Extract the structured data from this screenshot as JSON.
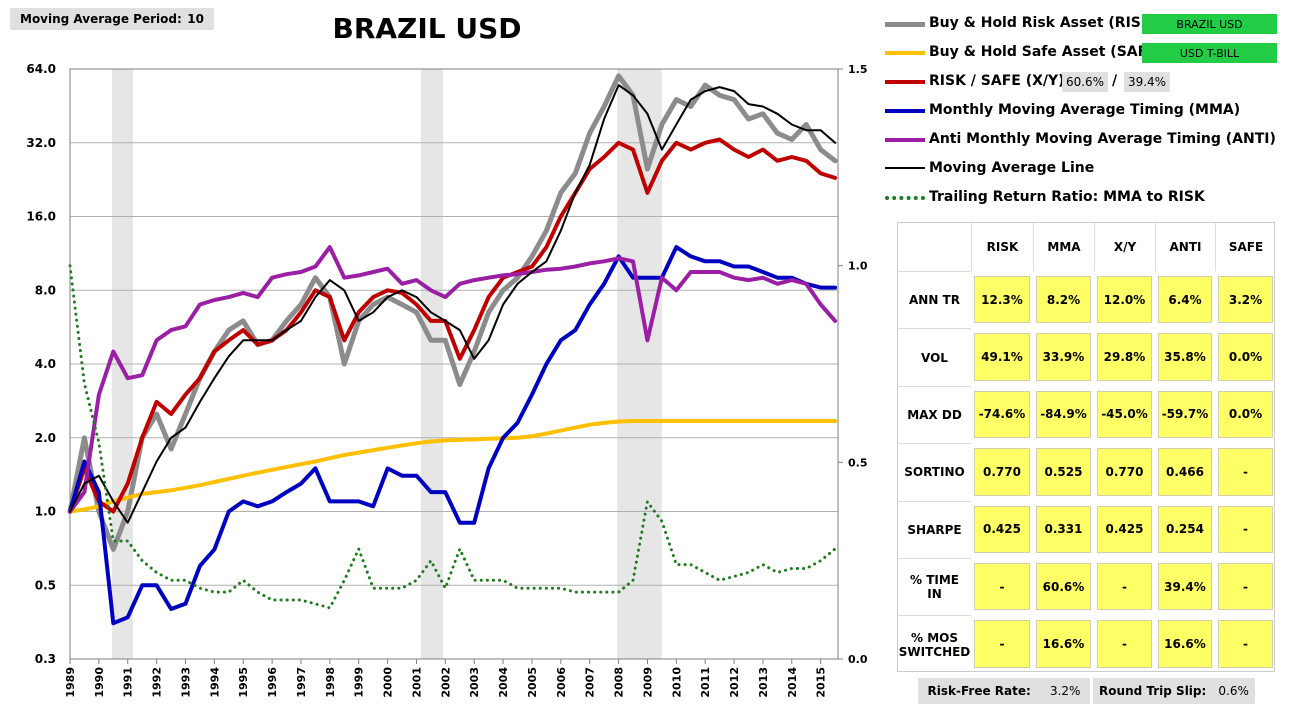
{
  "settings": {
    "ma_period_label": "Moving Average Period:",
    "ma_period": "10"
  },
  "chart_data": {
    "type": "line",
    "title": "BRAZIL USD",
    "ylog": true,
    "xlim": [
      1989,
      2015.6
    ],
    "xticks": [
      1989,
      1990,
      1991,
      1992,
      1993,
      1994,
      1995,
      1996,
      1997,
      1998,
      1999,
      2000,
      2001,
      2002,
      2003,
      2004,
      2005,
      2006,
      2007,
      2008,
      2009,
      2010,
      2011,
      2012,
      2013,
      2014,
      2015
    ],
    "ylim": [
      0.25,
      64
    ],
    "yticks": [
      {
        "value": 0.25,
        "label": "0.3"
      },
      0.5,
      {
        "value": 1,
        "label": "1.0"
      },
      {
        "value": 2,
        "label": "2.0"
      },
      {
        "value": 4,
        "label": "4.0"
      },
      {
        "value": 8,
        "label": "8.0"
      },
      {
        "value": 16,
        "label": "16.0"
      },
      {
        "value": 32,
        "label": "32.0"
      },
      {
        "value": 64,
        "label": "64.0"
      }
    ],
    "y2lim": [
      0,
      1.5
    ],
    "y2ticks": [
      {
        "value": 0,
        "label": "0.0"
      },
      0.5,
      {
        "value": 1,
        "label": "1.0"
      },
      1.5
    ],
    "grid": true,
    "shaded_periods": [
      [
        1990.45,
        1991.18
      ],
      [
        2001.16,
        2001.92
      ],
      [
        2007.95,
        2009.5
      ]
    ],
    "shade_color": "#e6e6e6",
    "x": [
      1989,
      1989.5,
      1990,
      1990.5,
      1991,
      1991.5,
      1992,
      1992.5,
      1993,
      1993.5,
      1994,
      1994.5,
      1995,
      1995.5,
      1996,
      1996.5,
      1997,
      1997.5,
      1998,
      1998.5,
      1999,
      1999.5,
      2000,
      2000.5,
      2001,
      2001.5,
      2002,
      2002.5,
      2003,
      2003.5,
      2004,
      2004.5,
      2005,
      2005.5,
      2006,
      2006.5,
      2007,
      2007.5,
      2008,
      2008.5,
      2009,
      2009.5,
      2010,
      2010.5,
      2011,
      2011.5,
      2012,
      2012.5,
      2013,
      2013.5,
      2014,
      2014.5,
      2015,
      2015.5
    ],
    "series": [
      {
        "name": "Buy & Hold Risk Asset (RISK):",
        "color": "#8c8c8c",
        "values": [
          1.0,
          2.0,
          1.0,
          0.7,
          1.0,
          2.0,
          2.5,
          1.8,
          2.5,
          3.5,
          4.5,
          5.5,
          6.0,
          4.8,
          5.0,
          6.0,
          7.0,
          9.0,
          7.5,
          4.0,
          6.0,
          7.0,
          7.5,
          7.0,
          6.5,
          5.0,
          5.0,
          3.3,
          4.5,
          6.5,
          8.0,
          9.0,
          11,
          14,
          20,
          24,
          35,
          45,
          60,
          50,
          25,
          38,
          48,
          45,
          55,
          50,
          48,
          40,
          42,
          35,
          33,
          38,
          30,
          27
        ]
      },
      {
        "name": "Buy & Hold Safe Asset (SAFE):",
        "color": "#ffc000",
        "values": [
          1.0,
          1.02,
          1.05,
          1.1,
          1.14,
          1.18,
          1.2,
          1.22,
          1.25,
          1.28,
          1.32,
          1.36,
          1.4,
          1.44,
          1.48,
          1.52,
          1.56,
          1.6,
          1.65,
          1.7,
          1.74,
          1.78,
          1.82,
          1.86,
          1.9,
          1.93,
          1.95,
          1.96,
          1.97,
          1.98,
          1.99,
          2.0,
          2.03,
          2.08,
          2.14,
          2.2,
          2.26,
          2.3,
          2.33,
          2.34,
          2.34,
          2.34,
          2.34,
          2.34,
          2.34,
          2.34,
          2.34,
          2.34,
          2.34,
          2.34,
          2.34,
          2.34,
          2.34,
          2.34
        ]
      },
      {
        "name": "RISK / SAFE (X/Y):",
        "color": "#c00000",
        "values": [
          1.0,
          1.5,
          1.1,
          1.0,
          1.3,
          2.0,
          2.8,
          2.5,
          3.0,
          3.5,
          4.5,
          5.0,
          5.5,
          4.8,
          5.0,
          5.5,
          6.5,
          8.0,
          7.5,
          5.0,
          6.5,
          7.5,
          8.0,
          7.8,
          7.0,
          6.0,
          6.0,
          4.2,
          5.5,
          7.5,
          9.0,
          9.5,
          10,
          12,
          16,
          20,
          25,
          28,
          32,
          30,
          20,
          27,
          32,
          30,
          32,
          33,
          30,
          28,
          30,
          27,
          28,
          27,
          24,
          23
        ]
      },
      {
        "name": "Monthly Moving Average Timing (MMA)",
        "color": "#0000c0",
        "values": [
          1.0,
          1.6,
          1.2,
          0.35,
          0.37,
          0.5,
          0.5,
          0.4,
          0.42,
          0.6,
          0.7,
          1.0,
          1.1,
          1.05,
          1.1,
          1.2,
          1.3,
          1.5,
          1.1,
          1.1,
          1.1,
          1.05,
          1.5,
          1.4,
          1.4,
          1.2,
          1.2,
          0.9,
          0.9,
          1.5,
          2.0,
          2.3,
          3.0,
          4.0,
          5.0,
          5.5,
          7.0,
          8.5,
          11,
          9.0,
          9.0,
          9.0,
          12,
          11,
          10.5,
          10.5,
          10,
          10,
          9.5,
          9.0,
          9.0,
          8.5,
          8.2,
          8.2
        ]
      },
      {
        "name": "Anti Monthly Moving Average Timing (ANTI)",
        "color": "#9b1fa5",
        "values": [
          1.0,
          1.2,
          3.0,
          4.5,
          3.5,
          3.6,
          5.0,
          5.5,
          5.7,
          7.0,
          7.3,
          7.5,
          7.8,
          7.5,
          9.0,
          9.3,
          9.5,
          10,
          12,
          9,
          9.2,
          9.5,
          9.8,
          8.5,
          8.8,
          8.0,
          7.5,
          8.5,
          8.8,
          9.0,
          9.2,
          9.3,
          9.5,
          9.7,
          9.8,
          10,
          10.3,
          10.5,
          10.8,
          10.5,
          5.0,
          9.0,
          8.0,
          9.5,
          9.5,
          9.5,
          9.0,
          8.8,
          9.0,
          8.5,
          8.8,
          8.5,
          7.0,
          6.0
        ]
      },
      {
        "name": "Moving Average Line",
        "color": "#000000",
        "values": [
          1.0,
          1.3,
          1.4,
          1.1,
          0.9,
          1.2,
          1.6,
          2.0,
          2.2,
          2.8,
          3.5,
          4.3,
          5.0,
          5.0,
          5.0,
          5.5,
          6.0,
          7.5,
          8.8,
          8.0,
          6.0,
          6.5,
          7.5,
          8.0,
          7.5,
          6.5,
          6.0,
          5.5,
          4.2,
          5.0,
          7.0,
          8.5,
          9.5,
          10.5,
          14,
          20,
          26,
          40,
          55,
          50,
          42,
          30,
          38,
          48,
          52,
          54,
          52,
          46,
          45,
          42,
          38,
          36,
          36,
          32
        ]
      },
      {
        "name": "Trailing Return Ratio: MMA to RISK",
        "color": "#1e7b1e",
        "axis": "y2",
        "dash": "dotted",
        "values": [
          1.0,
          0.7,
          0.55,
          0.3,
          0.3,
          0.25,
          0.22,
          0.2,
          0.2,
          0.18,
          0.17,
          0.17,
          0.2,
          0.17,
          0.15,
          0.15,
          0.15,
          0.14,
          0.13,
          0.2,
          0.28,
          0.18,
          0.18,
          0.18,
          0.2,
          0.25,
          0.18,
          0.28,
          0.2,
          0.2,
          0.2,
          0.18,
          0.18,
          0.18,
          0.18,
          0.17,
          0.17,
          0.17,
          0.17,
          0.2,
          0.4,
          0.35,
          0.24,
          0.24,
          0.22,
          0.2,
          0.21,
          0.22,
          0.24,
          0.22,
          0.23,
          0.23,
          0.25,
          0.28
        ]
      }
    ]
  },
  "legend_inputs": {
    "risk_asset": "BRAZIL USD",
    "safe_asset": "USD T-BILL",
    "risk_weight": "60.6%",
    "separator": "/",
    "safe_weight": "39.4%"
  },
  "stats_table": {
    "columns": [
      "RISK",
      "MMA",
      "X/Y",
      "ANTI",
      "SAFE"
    ],
    "rows": [
      {
        "label": "ANN TR",
        "cells": [
          "12.3%",
          "8.2%",
          "12.0%",
          "6.4%",
          "3.2%"
        ]
      },
      {
        "label": "VOL",
        "cells": [
          "49.1%",
          "33.9%",
          "29.8%",
          "35.8%",
          "0.0%"
        ]
      },
      {
        "label": "MAX DD",
        "cells": [
          "-74.6%",
          "-84.9%",
          "-45.0%",
          "-59.7%",
          "0.0%"
        ]
      },
      {
        "label": "SORTINO",
        "cells": [
          "0.770",
          "0.525",
          "0.770",
          "0.466",
          "-"
        ]
      },
      {
        "label": "SHARPE",
        "cells": [
          "0.425",
          "0.331",
          "0.425",
          "0.254",
          "-"
        ]
      },
      {
        "label": "% TIME IN",
        "cells": [
          "-",
          "60.6%",
          "-",
          "39.4%",
          "-"
        ]
      },
      {
        "label": "% MOS SWITCHED",
        "cells": [
          "-",
          "16.6%",
          "-",
          "16.6%",
          "-"
        ]
      }
    ]
  },
  "footer": {
    "risk_free_label": "Risk-Free Rate:",
    "risk_free": "3.2%",
    "slip_label": "Round Trip Slip:",
    "slip": "0.6%"
  }
}
